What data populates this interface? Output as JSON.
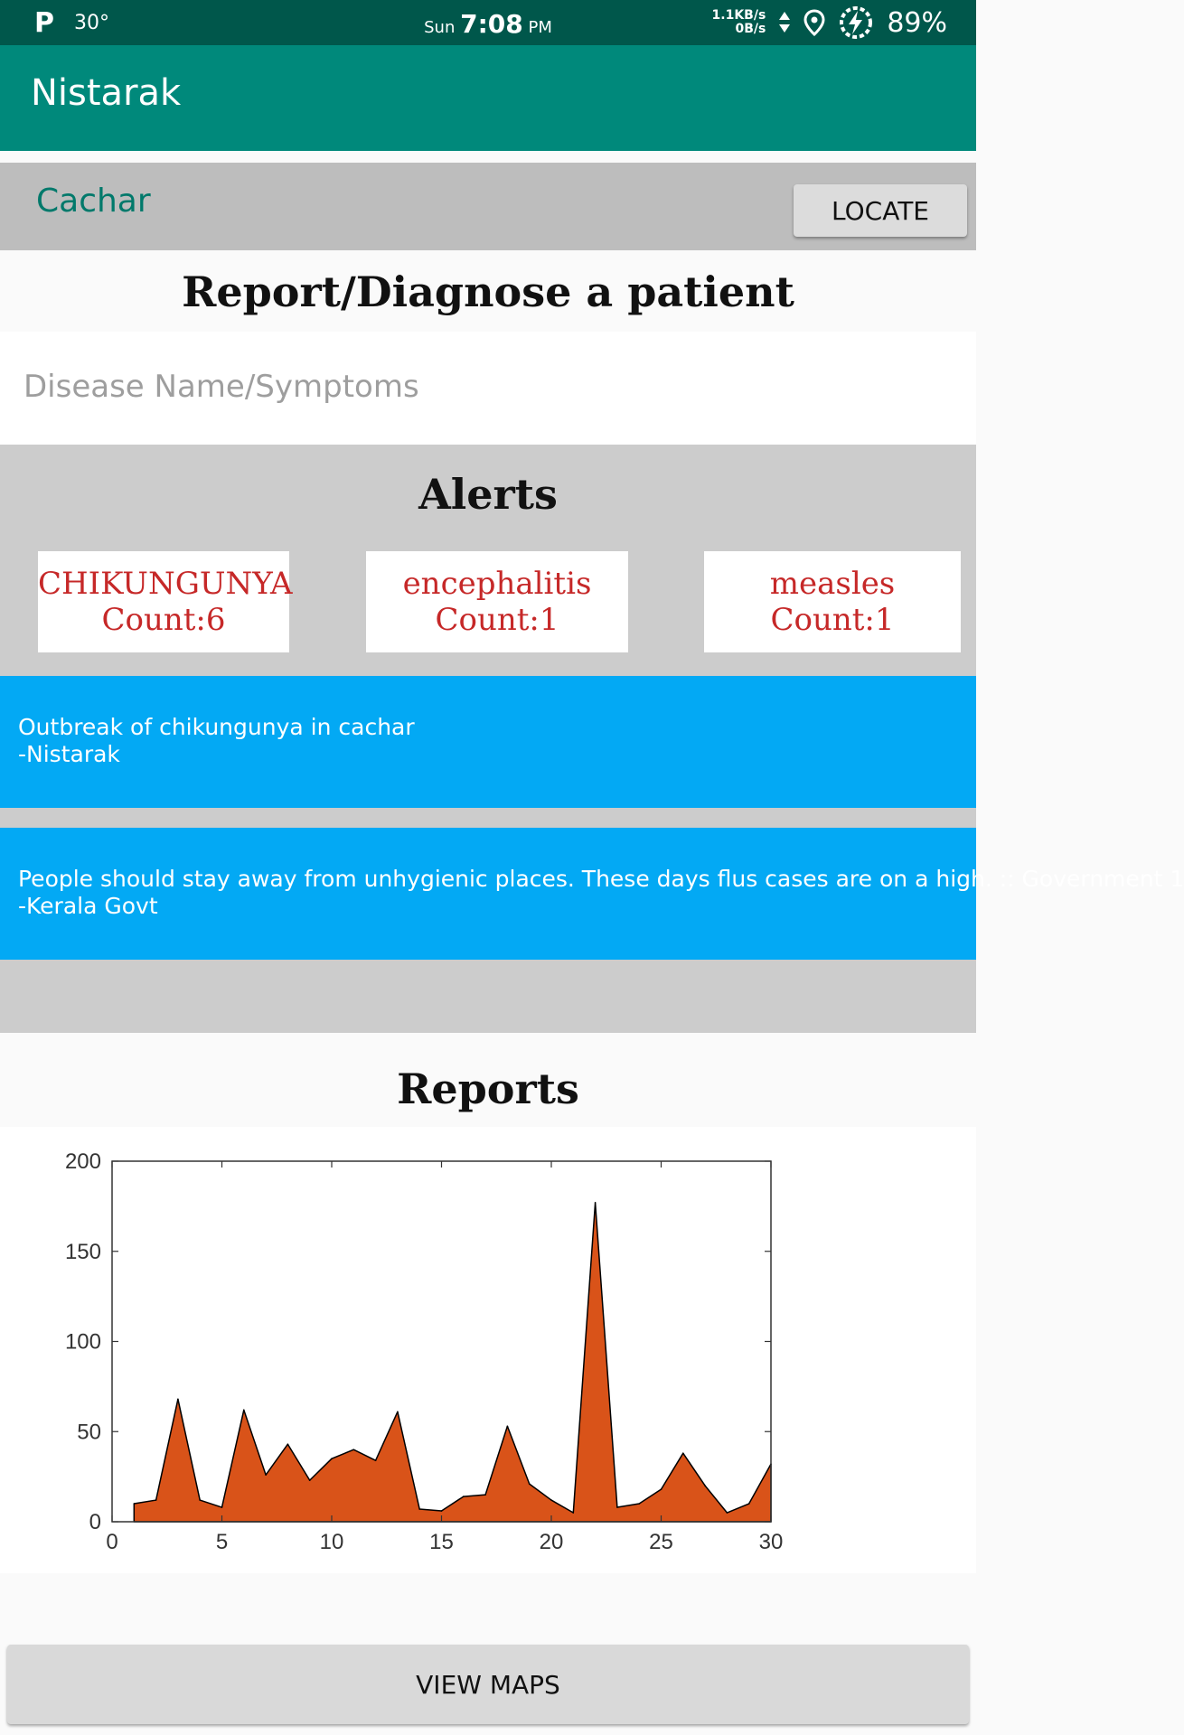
{
  "status_bar": {
    "left_icon": "P",
    "temperature": "30°",
    "day": "Sun",
    "time": "7:08",
    "ampm": "PM",
    "net_up": "1.1KB/s",
    "net_down": "0B/s",
    "battery": "89%"
  },
  "app": {
    "title": "Nistarak"
  },
  "location": {
    "name": "Cachar",
    "locate_label": "LOCATE"
  },
  "report": {
    "title": "Report/Diagnose a patient",
    "search_placeholder": "Disease Name/Symptoms"
  },
  "alerts": {
    "title": "Alerts",
    "cards": [
      {
        "name": "CHIKUNGUNYA",
        "count": "Count:6"
      },
      {
        "name": "encephalitis",
        "count": "Count:1"
      },
      {
        "name": "measles",
        "count": "Count:1"
      }
    ]
  },
  "notices": [
    {
      "message": "Outbreak of chikungunya in cachar",
      "author": "-Nistarak"
    },
    {
      "message": "People should stay away from unhygienic places. These days flus cases are on a high. :: Government 1",
      "author": "-Kerala Govt"
    }
  ],
  "reports": {
    "title": "Reports"
  },
  "chart_data": {
    "type": "area",
    "x": [
      1,
      2,
      3,
      4,
      5,
      6,
      7,
      8,
      9,
      10,
      11,
      12,
      13,
      14,
      15,
      16,
      17,
      18,
      19,
      20,
      21,
      22,
      23,
      24,
      25,
      26,
      27,
      28,
      29,
      30
    ],
    "y": [
      10,
      12,
      68,
      12,
      8,
      62,
      26,
      43,
      23,
      35,
      40,
      34,
      61,
      7,
      6,
      14,
      15,
      53,
      21,
      12,
      5,
      177,
      8,
      10,
      18,
      38,
      20,
      5,
      10,
      32
    ],
    "xlim": [
      0,
      30
    ],
    "ylim": [
      0,
      200
    ],
    "xticks": [
      "0",
      "5",
      "10",
      "15",
      "20",
      "25",
      "30"
    ],
    "yticks": [
      "0",
      "50",
      "100",
      "150",
      "200"
    ],
    "fill_color": "#d95319",
    "line_color": "#000000"
  },
  "footer": {
    "view_maps_label": "VIEW MAPS"
  }
}
